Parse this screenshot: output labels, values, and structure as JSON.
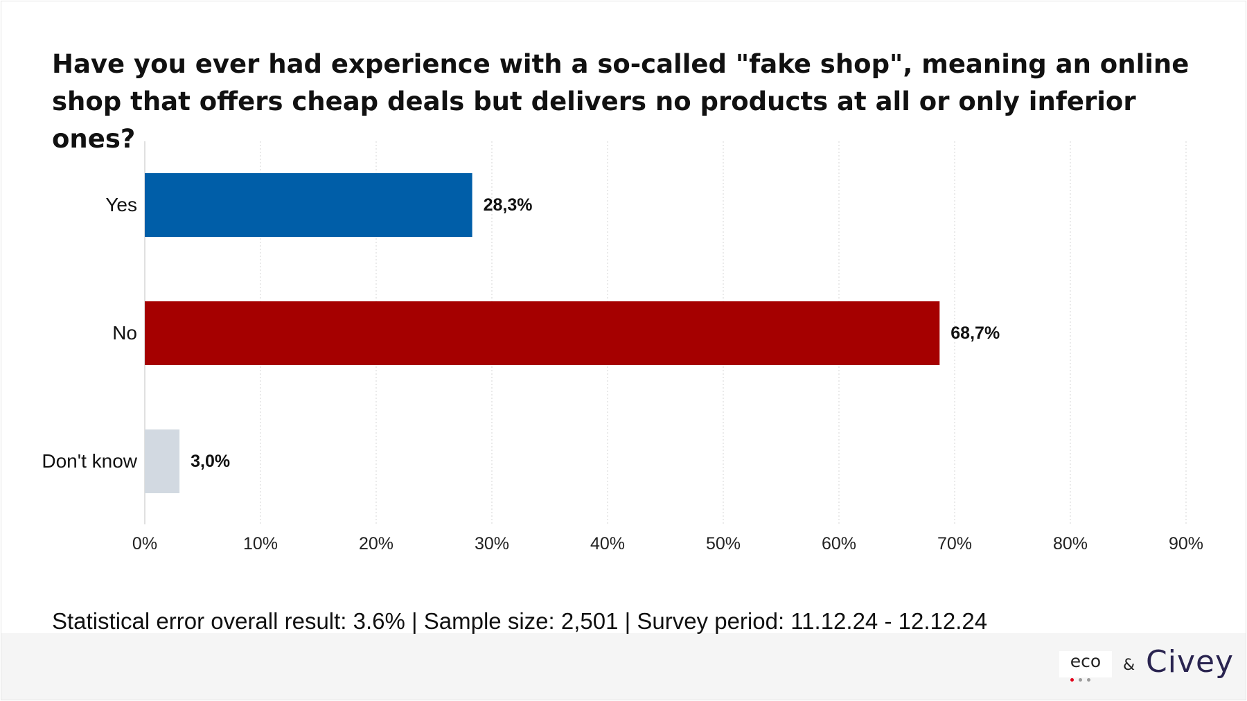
{
  "chart_data": {
    "type": "bar",
    "orientation": "horizontal",
    "title": "Have you ever had experience with a so-called \"fake shop\", meaning an online shop that offers cheap deals but delivers no products at all or only inferior ones?",
    "categories": [
      "Yes",
      "No",
      "Don't know"
    ],
    "values": [
      28.3,
      68.7,
      3.0
    ],
    "value_labels": [
      "28,3%",
      "68,7%",
      "3,0%"
    ],
    "colors": [
      "#005ea8",
      "#a50000",
      "#d2d9e1"
    ],
    "xlim": [
      0,
      90
    ],
    "xticks": [
      0,
      10,
      20,
      30,
      40,
      50,
      60,
      70,
      80,
      90
    ],
    "xtick_labels": [
      "0%",
      "10%",
      "20%",
      "30%",
      "40%",
      "50%",
      "60%",
      "70%",
      "80%",
      "90%"
    ],
    "grid": true,
    "legend": "none"
  },
  "footer": {
    "stats_text": "Statistical error overall result: 3.6% | Sample size: 2,501 | Survey period: 11.12.24 - 12.12.24",
    "logo_eco": "eco",
    "amp": "&",
    "logo_civey": "Civey"
  }
}
